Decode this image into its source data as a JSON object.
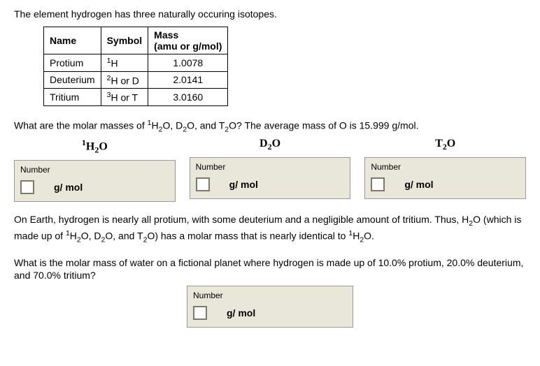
{
  "intro": "The element hydrogen has three naturally occuring isotopes.",
  "table": {
    "headers": {
      "name": "Name",
      "symbol": "Symbol",
      "mass": "Mass",
      "mass_unit": "(amu or g/mol)"
    },
    "rows": [
      {
        "name": "Protium",
        "symbol": "<sup>1</sup>H",
        "mass": "1.0078"
      },
      {
        "name": "Deuterium",
        "symbol": "<sup>2</sup>H or D",
        "mass": "2.0141"
      },
      {
        "name": "Tritium",
        "symbol": "<sup>3</sup>H or T",
        "mass": "3.0160"
      }
    ]
  },
  "q1": {
    "text": "What are the molar masses of <sup>1</sup>H<sub>2</sub>O, D<sub>2</sub>O, and T<sub>2</sub>O? The average mass of O is 15.999 g/mol.",
    "species": [
      {
        "formula": "<sup>1</sup>H<sub>2</sub>O",
        "label": "Number",
        "unit": "g/ mol"
      },
      {
        "formula": "D<sub>2</sub>O",
        "label": "Number",
        "unit": "g/ mol"
      },
      {
        "formula": "T<sub>2</sub>O",
        "label": "Number",
        "unit": "g/ mol"
      }
    ]
  },
  "para": "On Earth, hydrogen is nearly all protium, with some deuterium and a negligible amount of tritium. Thus, H<sub>2</sub>O (which is made up of <sup>1</sup>H<sub>2</sub>O, D<sub>2</sub>O, and T<sub>2</sub>O) has a molar mass that is nearly identical to <sup>1</sup>H<sub>2</sub>O.",
  "q2": {
    "text": "What is the molar mass of water on a fictional planet where hydrogen is made up of 10.0% protium, 20.0% deuterium, and 70.0% tritium?",
    "label": "Number",
    "unit": "g/ mol"
  }
}
